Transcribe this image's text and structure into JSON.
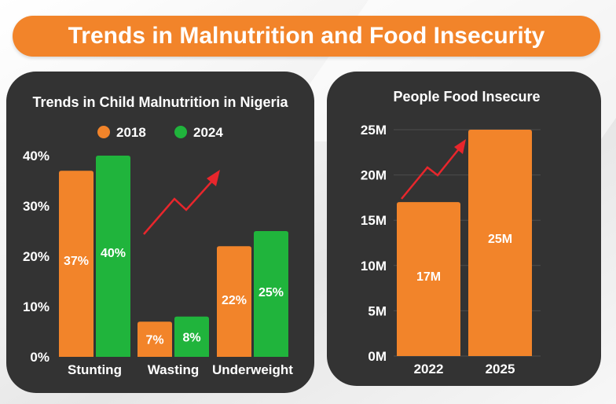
{
  "page": {
    "title": "Trends in Malnutrition and Food Insecurity"
  },
  "colors": {
    "accent": "#f2842a",
    "green": "#20b43c",
    "panel": "#333333",
    "arrow": "#e8262c"
  },
  "chart_data": [
    {
      "type": "bar",
      "title": "Trends in Child Malnutrition in Nigeria",
      "categories": [
        "Stunting",
        "Wasting",
        "Underweight"
      ],
      "series": [
        {
          "name": "2018",
          "values": [
            37,
            7,
            22
          ],
          "labels": [
            "37%",
            "7%",
            "22%"
          ],
          "color": "#f2842a"
        },
        {
          "name": "2024",
          "values": [
            40,
            8,
            25
          ],
          "labels": [
            "40%",
            "8%",
            "25%"
          ],
          "color": "#20b43c"
        }
      ],
      "yticks": [
        "0%",
        "10%",
        "20%",
        "30%",
        "40%"
      ],
      "ylim": [
        0,
        40
      ],
      "legend": "top",
      "grid": false,
      "annotation": "upward trend arrow"
    },
    {
      "type": "bar",
      "title": "People Food Insecure",
      "categories": [
        "2022",
        "2025"
      ],
      "series": [
        {
          "values": [
            17,
            25
          ],
          "labels": [
            "17M",
            "25M"
          ],
          "color": "#f2842a"
        }
      ],
      "yticks": [
        "0M",
        "5M",
        "10M",
        "15M",
        "20M",
        "25M"
      ],
      "ylim": [
        0,
        25
      ],
      "grid": true,
      "annotation": "upward trend arrow"
    }
  ]
}
